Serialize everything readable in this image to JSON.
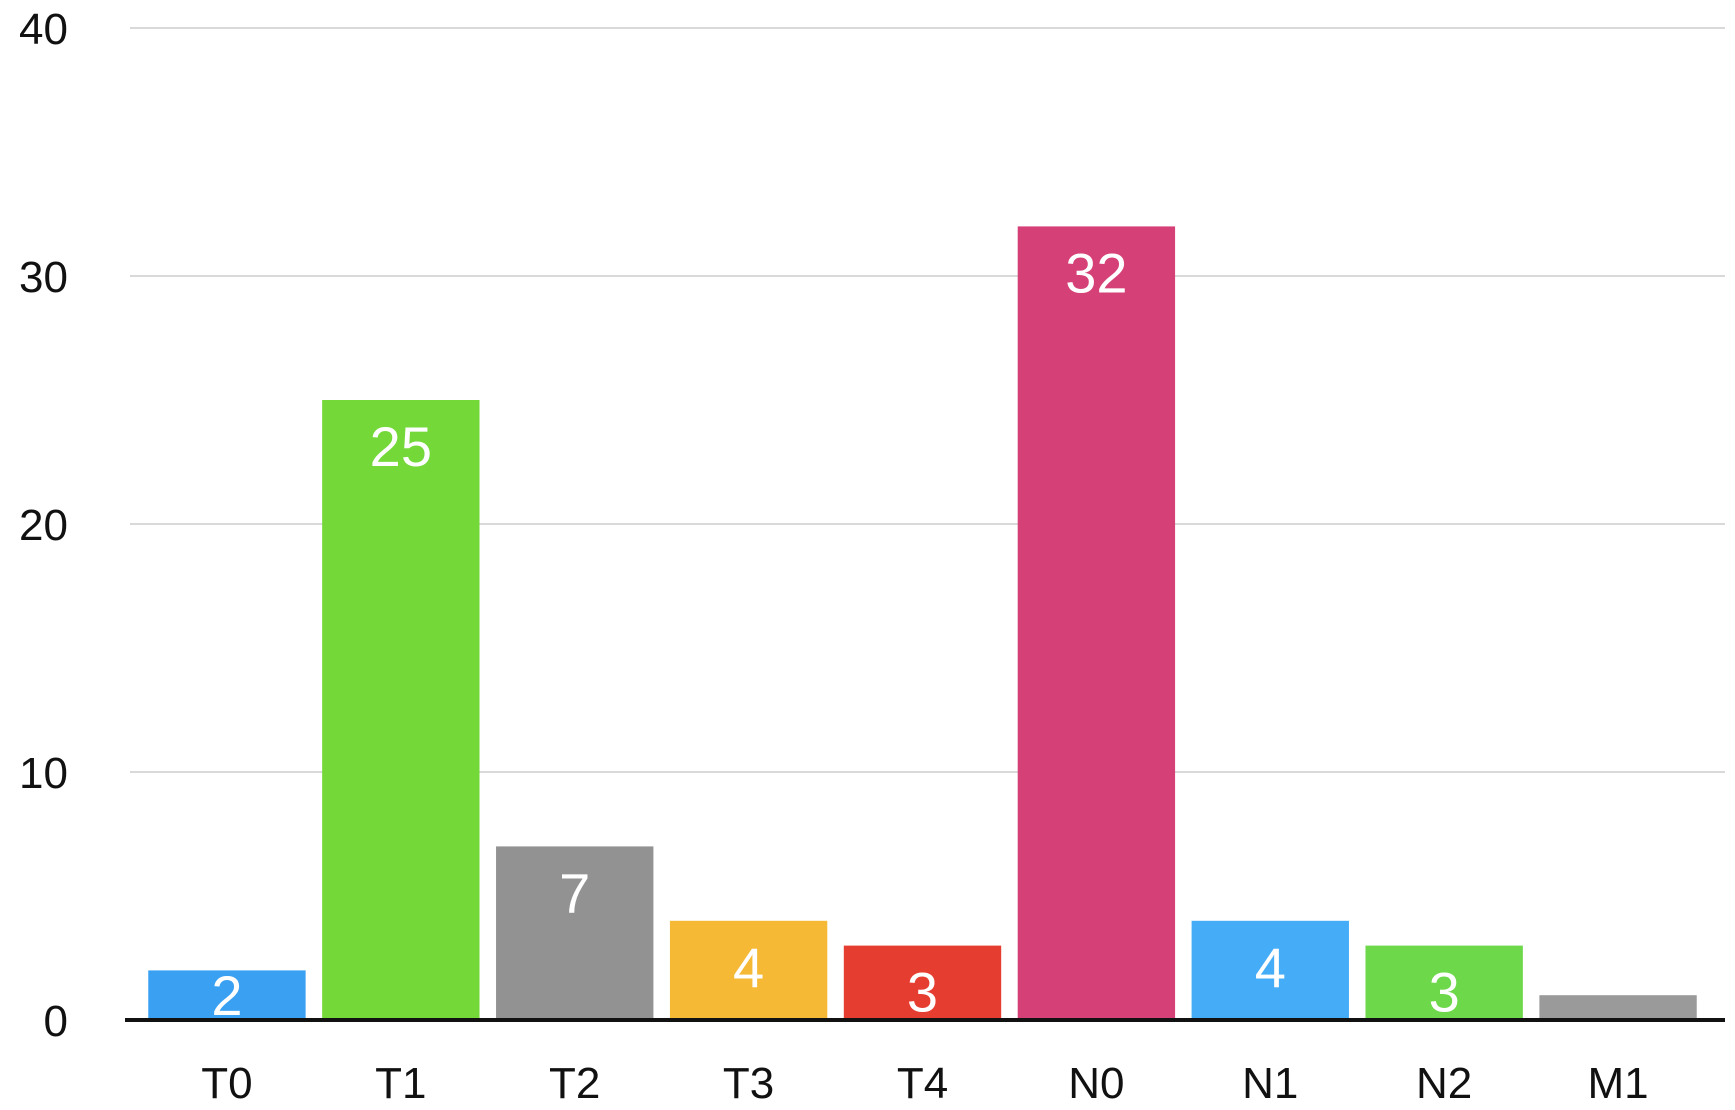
{
  "chart_data": {
    "type": "bar",
    "categories": [
      "T0",
      "T1",
      "T2",
      "T3",
      "T4",
      "N0",
      "N1",
      "N2",
      "M1"
    ],
    "values": [
      2,
      25,
      7,
      4,
      3,
      32,
      4,
      3,
      1
    ],
    "data_labels": [
      "2",
      "25",
      "7",
      "4",
      "3",
      "32",
      "4",
      "3",
      ""
    ],
    "colors": [
      "#3aa0f2",
      "#73d838",
      "#929292",
      "#f5b935",
      "#e63d31",
      "#d54076",
      "#45adf7",
      "#6ed84b",
      "#9a9a9a"
    ],
    "ylim": [
      0,
      40
    ],
    "yticks": [
      0,
      10,
      20,
      30,
      40
    ],
    "ytick_labels": [
      "0",
      "10",
      "20",
      "30",
      "40"
    ],
    "grid": true,
    "title": "",
    "xlabel": "",
    "ylabel": ""
  }
}
